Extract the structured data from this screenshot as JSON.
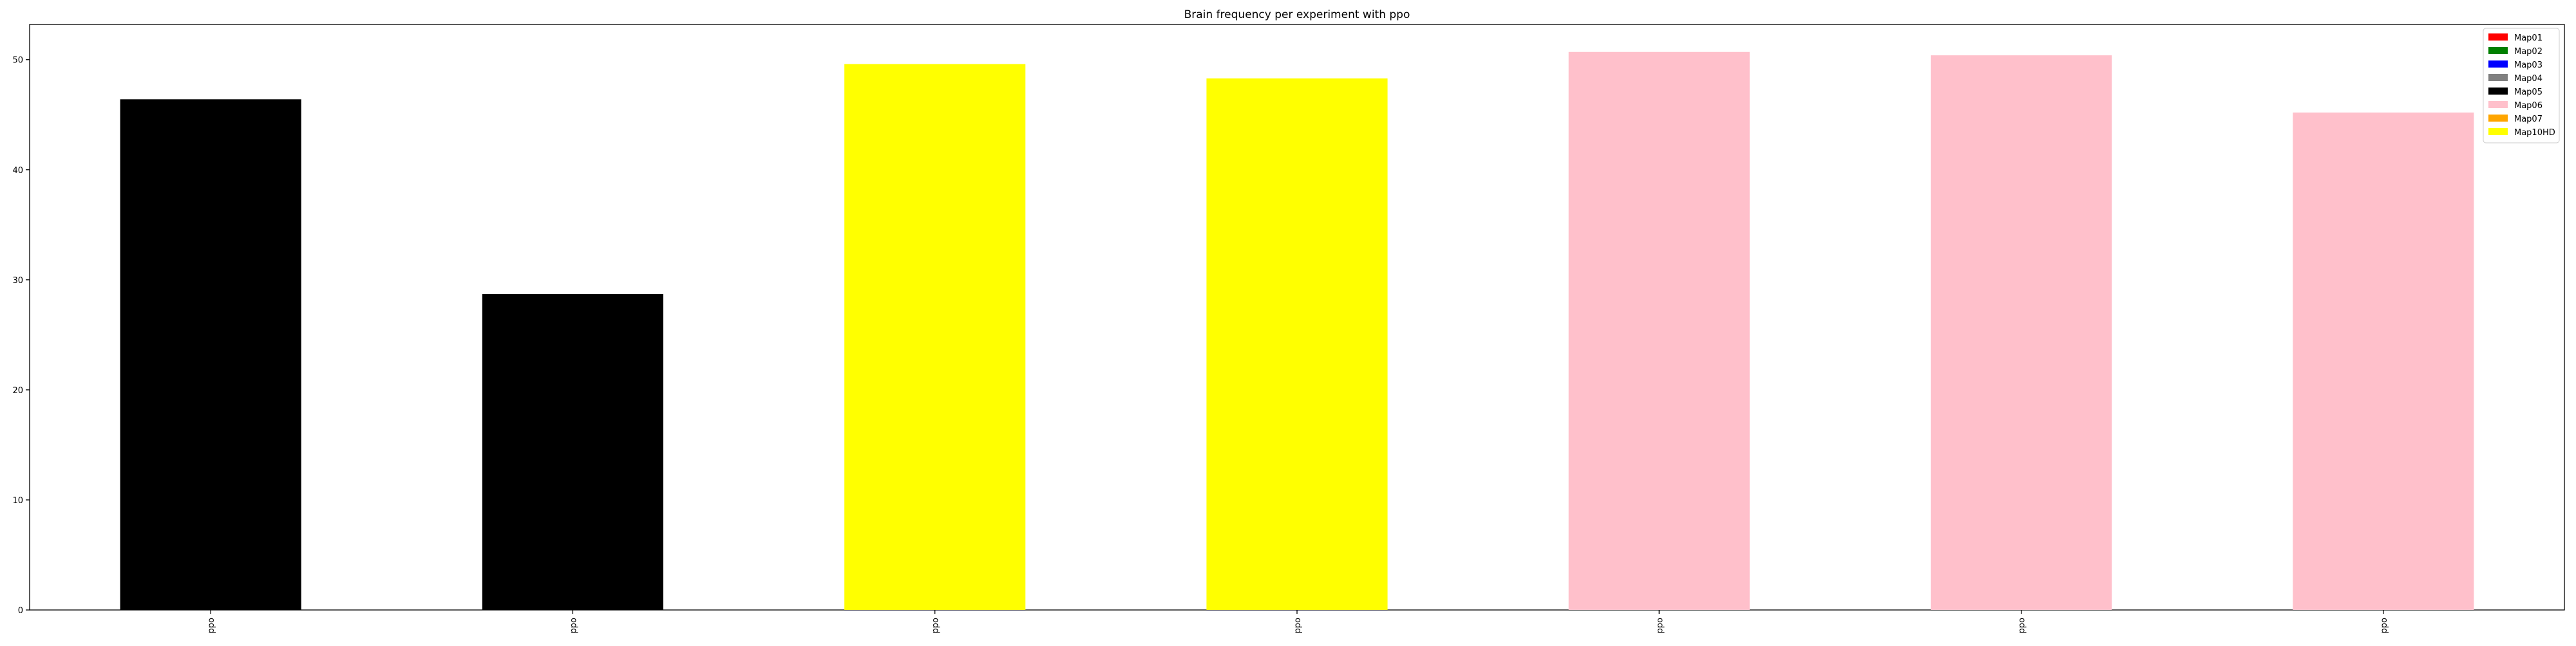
{
  "chart_data": {
    "type": "bar",
    "title": "Brain frequency per experiment with ppo",
    "xlabel": "",
    "ylabel": "",
    "categories": [
      "ppo",
      "ppo",
      "ppo",
      "ppo",
      "ppo",
      "ppo",
      "ppo"
    ],
    "values": [
      46.4,
      28.7,
      49.6,
      48.3,
      50.7,
      50.4,
      45.2
    ],
    "bar_colors": [
      "#000000",
      "#000000",
      "#ffff00",
      "#ffff00",
      "#ffc0cb",
      "#ffc0cb",
      "#ffc0cb"
    ],
    "ylim": [
      0,
      53.2
    ],
    "yticks": [
      0,
      10,
      20,
      30,
      40,
      50
    ],
    "grid": false,
    "legend": {
      "placement": "top-right",
      "entries": [
        {
          "label": "Map01",
          "color": "#ff0000"
        },
        {
          "label": "Map02",
          "color": "#008000"
        },
        {
          "label": "Map03",
          "color": "#0000ff"
        },
        {
          "label": "Map04",
          "color": "#808080"
        },
        {
          "label": "Map05",
          "color": "#000000"
        },
        {
          "label": "Map06",
          "color": "#ffc0cb"
        },
        {
          "label": "Map07",
          "color": "#ffa500"
        },
        {
          "label": "Map10HD",
          "color": "#ffff00"
        }
      ]
    }
  }
}
